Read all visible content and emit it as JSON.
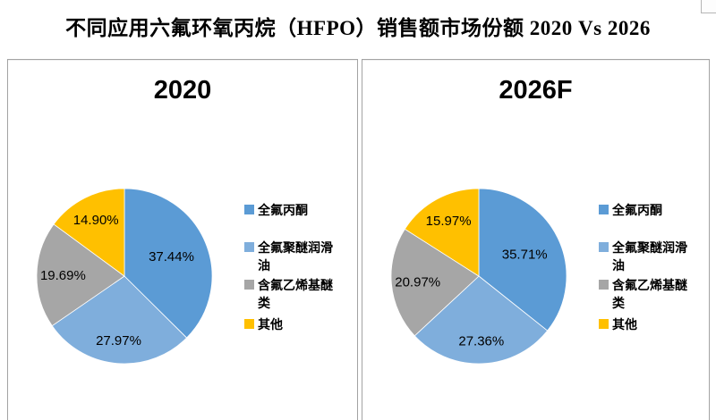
{
  "page_title": "不同应用六氟环氧丙烷（HFPO）销售额市场份额 2020 Vs 2026",
  "colors": {
    "series": [
      "#5B9BD5",
      "#7FAEDC",
      "#A6A6A6",
      "#FFC000"
    ],
    "slice_separator": "#FFFFFF",
    "panel_border": "#A3A3A3",
    "text": "#000000"
  },
  "legend_items": [
    "全氟丙酮",
    "全氟聚醚润滑油",
    "含氟乙烯基醚类",
    "其他"
  ],
  "chart_data": [
    {
      "type": "pie",
      "title": "2020",
      "labels": [
        "全氟丙酮",
        "全氟聚醚润滑油",
        "含氟乙烯基醚类",
        "其他"
      ],
      "values": [
        37.44,
        27.97,
        19.69,
        14.9
      ],
      "value_labels": [
        "37.44%",
        "27.97%",
        "19.69%",
        "14.90%"
      ],
      "colors": [
        "#5B9BD5",
        "#7FAEDC",
        "#A6A6A6",
        "#FFC000"
      ],
      "start_angle_deg": 0,
      "direction": "clockwise",
      "legend_position": "right"
    },
    {
      "type": "pie",
      "title": "2026F",
      "labels": [
        "全氟丙酮",
        "全氟聚醚润滑油",
        "含氟乙烯基醚类",
        "其他"
      ],
      "values": [
        35.71,
        27.36,
        20.97,
        15.97
      ],
      "value_labels": [
        "35.71%",
        "27.36%",
        "20.97%",
        "15.97%"
      ],
      "colors": [
        "#5B9BD5",
        "#7FAEDC",
        "#A6A6A6",
        "#FFC000"
      ],
      "start_angle_deg": 0,
      "direction": "clockwise",
      "legend_position": "right"
    }
  ]
}
